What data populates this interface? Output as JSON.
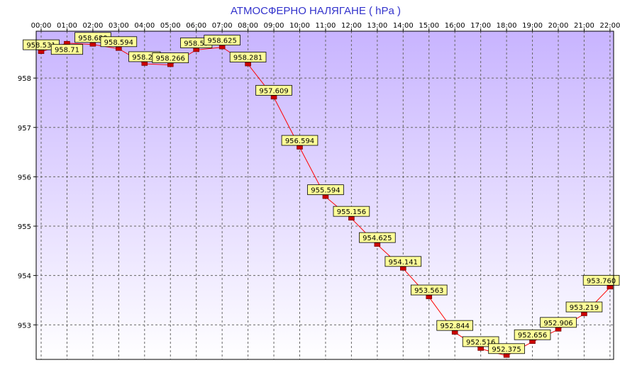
{
  "chart_data": {
    "type": "line",
    "title": "АТМОСФЕРНО НАЛЯГАНЕ  ( hPa )",
    "xlabel": "",
    "ylabel": "",
    "x": [
      "00:00",
      "01:00",
      "02:00",
      "03:00",
      "04:00",
      "05:00",
      "06:00",
      "07:00",
      "08:00",
      "09:00",
      "10:00",
      "11:00",
      "12:00",
      "13:00",
      "14:00",
      "15:00",
      "16:00",
      "17:00",
      "18:00",
      "19:00",
      "20:00",
      "21:00",
      "22:00"
    ],
    "x_labels_shown": [
      "00:00",
      "01:00",
      "02:00",
      "03:00",
      "04:00",
      "05:00",
      "06:00",
      "07:00",
      "08:00",
      "09:00",
      "10:00",
      "11:00",
      "12:00",
      "13:00",
      "14:00",
      "15:00",
      "16:00",
      "17:00",
      "18:00",
      "19:00",
      "20:00",
      "21:00",
      "22:00"
    ],
    "series": [
      {
        "values": [
          958.531,
          958.71,
          958.68,
          958.594,
          958.29,
          958.266,
          958.57,
          958.625,
          958.281,
          957.609,
          956.594,
          955.594,
          955.156,
          954.625,
          954.141,
          953.563,
          952.844,
          952.516,
          952.375,
          952.656,
          952.906,
          953.219,
          953.76
        ],
        "labels": [
          "958.531",
          "958.71",
          "958.680",
          "958.594",
          "958.29",
          "958.266",
          "958.57",
          "958.625",
          "958.281",
          "957.609",
          "956.594",
          "955.594",
          "955.156",
          "954.625",
          "954.141",
          "953.563",
          "952.844",
          "952.516",
          "952.375",
          "952.656",
          "952.906",
          "953.219",
          "953.760"
        ]
      }
    ],
    "y_ticks": [
      953,
      954,
      955,
      956,
      957,
      958
    ],
    "ylim": [
      952.3,
      958.95
    ],
    "grid": true,
    "legend": "none",
    "colors": {
      "background_top": "#c8b4ff",
      "background_bottom": "#ffffff",
      "line": "#ff0000",
      "marker": "#cc0000",
      "label_fill": "#ffff99",
      "title": "#3333cc",
      "grid": "#666666"
    }
  }
}
